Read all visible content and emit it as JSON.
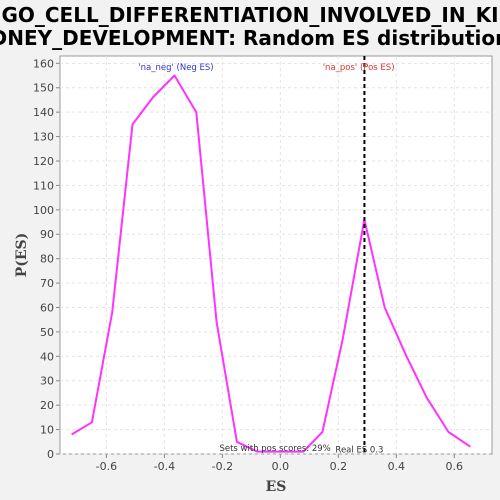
{
  "chart_data": {
    "type": "line",
    "title_lines": [
      "GO_CELL_DIFFERENTIATION_INVOLVED_IN_KI",
      "DNEY_DEVELOPMENT: Random ES distribution"
    ],
    "xlabel": "ES",
    "ylabel": "P(ES)",
    "xlim": [
      -0.76,
      0.73
    ],
    "ylim": [
      0,
      163
    ],
    "xticks": [
      "-0.6",
      "-0.4",
      "-0.2",
      "0.0",
      "0.2",
      "0.4",
      "0.6"
    ],
    "yticks": [
      "0",
      "10",
      "20",
      "30",
      "40",
      "50",
      "60",
      "70",
      "80",
      "90",
      "100",
      "110",
      "120",
      "130",
      "140",
      "150",
      "160"
    ],
    "grid": true,
    "series": [
      {
        "color": "#ff33ff",
        "x": [
          -0.72,
          -0.65,
          -0.58,
          -0.51,
          -0.44,
          -0.365,
          -0.29,
          -0.22,
          -0.15,
          -0.08,
          0.08,
          0.145,
          0.215,
          0.29,
          0.36,
          0.435,
          0.505,
          0.58,
          0.655
        ],
        "y": [
          8,
          13,
          58,
          135,
          146,
          155,
          140,
          54,
          5,
          1,
          1,
          9,
          47,
          96,
          60,
          40,
          23,
          9,
          3
        ]
      }
    ],
    "real_es": 0.29,
    "annotations": {
      "neg_label": "'na_neg' (Neg ES)",
      "pos_label": "'na_pos' (Pos ES)",
      "pos_scores": "Sets with pos scores: 29%",
      "real_es": "Real ES 0.3"
    },
    "colors": {
      "neg_label": "#3333cc",
      "pos_label": "#dd3333",
      "plot_bg": "#ffffff",
      "page_bg": "#f2f2f2"
    }
  }
}
